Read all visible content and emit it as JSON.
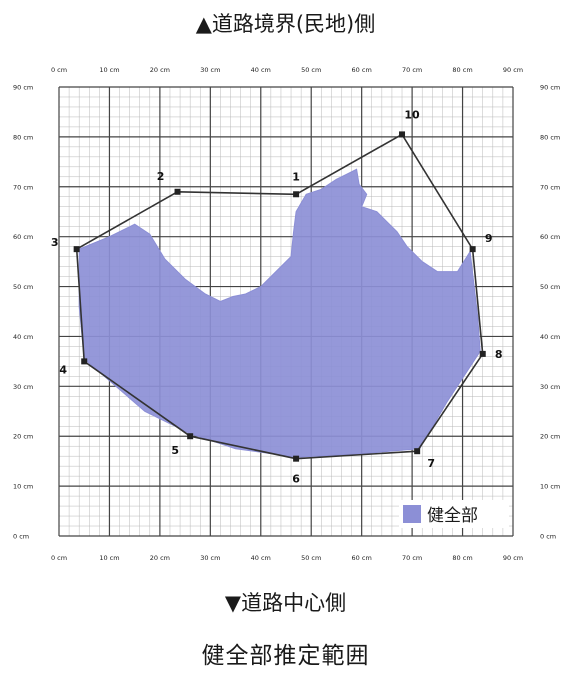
{
  "top_label": "▲道路境界(民地)側",
  "bottom_label": "▼道路中心側",
  "title": "健全部推定範囲",
  "legend_label": "健全部",
  "colors": {
    "healthy_area": "#8c8fd6",
    "grid_minor": "#b8b8b8",
    "grid_major": "#444444",
    "boundary": "#333333"
  },
  "chart_data": {
    "type": "scatter",
    "x_ticks": [
      "0 cm",
      "10 cm",
      "20 cm",
      "30 cm",
      "40 cm",
      "50 cm",
      "60 cm",
      "70 cm",
      "80 cm",
      "90 cm"
    ],
    "y_ticks": [
      "0 cm",
      "10 cm",
      "20 cm",
      "30 cm",
      "40 cm",
      "50 cm",
      "60 cm",
      "70 cm",
      "80 cm",
      "90 cm"
    ],
    "xlim": [
      0,
      90
    ],
    "ylim": [
      0,
      90
    ],
    "grid": true,
    "legend_position": "bottom-right",
    "boundary_points": [
      {
        "label": "1",
        "x": 47.0,
        "y": 68.5
      },
      {
        "label": "2",
        "x": 23.5,
        "y": 69.0
      },
      {
        "label": "3",
        "x": 3.5,
        "y": 57.5
      },
      {
        "label": "4",
        "x": 5.0,
        "y": 35.0
      },
      {
        "label": "5",
        "x": 26.0,
        "y": 20.0
      },
      {
        "label": "6",
        "x": 47.0,
        "y": 15.5
      },
      {
        "label": "7",
        "x": 71.0,
        "y": 17.0
      },
      {
        "label": "8",
        "x": 84.0,
        "y": 36.5
      },
      {
        "label": "9",
        "x": 82.0,
        "y": 57.5
      },
      {
        "label": "10",
        "x": 68.0,
        "y": 80.5
      }
    ],
    "healthy_region": [
      [
        4.0,
        57.5
      ],
      [
        10.0,
        60.0
      ],
      [
        15.0,
        62.5
      ],
      [
        18.0,
        60.5
      ],
      [
        21.0,
        55.5
      ],
      [
        25.0,
        51.5
      ],
      [
        29.0,
        48.5
      ],
      [
        32.0,
        47.0
      ],
      [
        34.5,
        48.0
      ],
      [
        37.0,
        48.5
      ],
      [
        40.0,
        50.0
      ],
      [
        43.0,
        53.0
      ],
      [
        46.0,
        56.0
      ],
      [
        46.5,
        61.0
      ],
      [
        47.0,
        65.0
      ],
      [
        49.0,
        68.5
      ],
      [
        52.0,
        69.5
      ],
      [
        55.0,
        71.5
      ],
      [
        57.0,
        72.5
      ],
      [
        59.0,
        73.5
      ],
      [
        59.5,
        70.5
      ],
      [
        61.0,
        68.5
      ],
      [
        60.0,
        66.0
      ],
      [
        63.0,
        65.0
      ],
      [
        65.0,
        63.0
      ],
      [
        67.0,
        61.0
      ],
      [
        69.0,
        58.0
      ],
      [
        72.0,
        55.0
      ],
      [
        75.0,
        53.0
      ],
      [
        79.0,
        53.0
      ],
      [
        81.5,
        57.0
      ],
      [
        83.0,
        44.0
      ],
      [
        83.5,
        37.0
      ],
      [
        77.0,
        27.0
      ],
      [
        71.5,
        17.5
      ],
      [
        60.0,
        16.5
      ],
      [
        47.0,
        15.8
      ],
      [
        35.0,
        17.5
      ],
      [
        26.0,
        20.5
      ],
      [
        17.0,
        25.0
      ],
      [
        5.0,
        35.5
      ],
      [
        4.0,
        46.0
      ]
    ]
  }
}
